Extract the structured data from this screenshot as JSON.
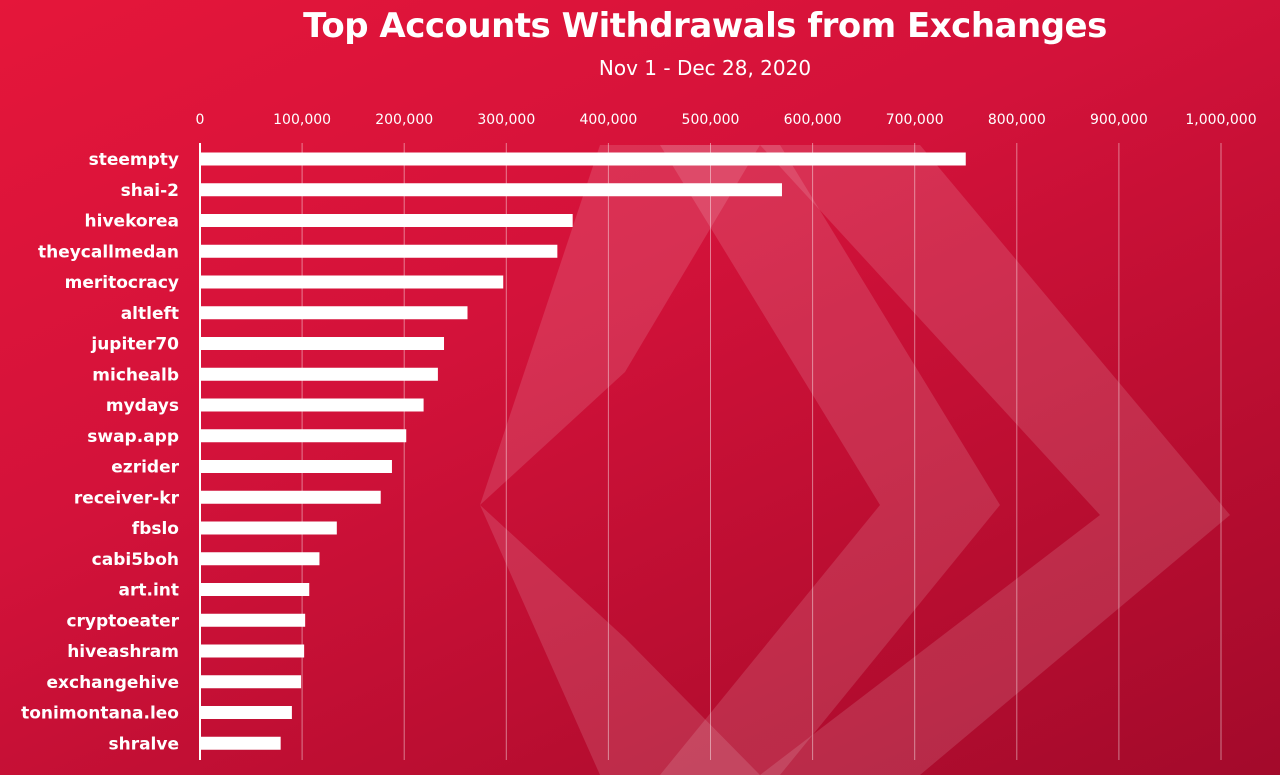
{
  "title": "Top Accounts Withdrawals from Exchanges",
  "subtitle": "Nov 1 - Dec 28, 2020",
  "colors": {
    "background": "#d3123a",
    "bar": "#ffffff",
    "gridline": "#ffffff",
    "text": "#ffffff",
    "watermark": "#ffffff"
  },
  "watermark_icon": "hive-logo-icon",
  "chart_data": {
    "type": "bar",
    "orientation": "horizontal",
    "title": "Top Accounts Withdrawals from Exchanges",
    "subtitle": "Nov 1 - Dec 28, 2020",
    "xlabel": "",
    "ylabel": "",
    "xlim": [
      0,
      1000000
    ],
    "x_ticks": [
      0,
      100000,
      200000,
      300000,
      400000,
      500000,
      600000,
      700000,
      800000,
      900000,
      1000000
    ],
    "x_tick_labels": [
      "0",
      "100,000",
      "200,000",
      "300,000",
      "400,000",
      "500,000",
      "600,000",
      "700,000",
      "800,000",
      "900,000",
      "1,000,000"
    ],
    "axis_position": "top",
    "grid": true,
    "legend": false,
    "categories": [
      "steempty",
      "shai-2",
      "hivekorea",
      "theycallmedan",
      "meritocracy",
      "altleft",
      "jupiter70",
      "michealb",
      "mydays",
      "swap.app",
      "ezrider",
      "receiver-kr",
      "fbslo",
      "cabi5boh",
      "art.int",
      "cryptoeater",
      "hiveashram",
      "exchangehive",
      "tonimontana.leo",
      "shralve"
    ],
    "values": [
      750000,
      570000,
      365000,
      350000,
      297000,
      262000,
      239000,
      233000,
      219000,
      202000,
      188000,
      177000,
      134000,
      117000,
      107000,
      103000,
      102000,
      99000,
      90000,
      79000
    ]
  }
}
